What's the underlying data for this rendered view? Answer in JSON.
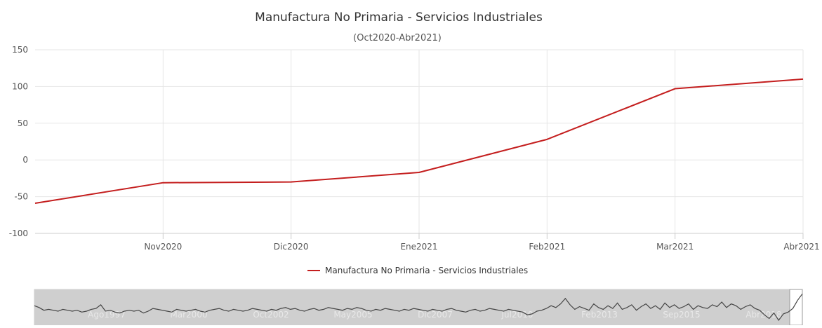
{
  "chart_data": {
    "type": "line",
    "title": "Manufactura No Primaria - Servicios Industriales",
    "subtitle": "(Oct2020-Abr2021)",
    "categories": [
      "Oct2020",
      "Nov2020",
      "Dic2020",
      "Ene2021",
      "Feb2021",
      "Mar2021",
      "Abr2021"
    ],
    "x_tick_labels": [
      "Nov2020",
      "Dic2020",
      "Ene2021",
      "Feb2021",
      "Mar2021",
      "Abr2021"
    ],
    "series": [
      {
        "name": "Manufactura No Primaria - Servicios Industriales",
        "color": "#c41e1e",
        "values": [
          -59,
          -31,
          -30,
          -17,
          28,
          97,
          110
        ]
      }
    ],
    "ylim": [
      -100,
      150
    ],
    "y_ticks": [
      -100,
      -50,
      0,
      50,
      100,
      150
    ],
    "xlabel": "",
    "ylabel": "",
    "grid": true,
    "legend": "bottom-center",
    "navigator": {
      "labels": [
        "Ago1997",
        "Mar2000",
        "Oct2002",
        "May2005",
        "Dic2007",
        "Jul2010",
        "Feb2013",
        "Sep2015",
        "Abr2018"
      ],
      "series_values": [
        6,
        4,
        1,
        2,
        1,
        0,
        2,
        1,
        0,
        1,
        -1,
        0,
        2,
        3,
        7,
        0,
        1,
        -1,
        -2,
        0,
        1,
        0,
        1,
        -2,
        0,
        3,
        2,
        1,
        0,
        -1,
        2,
        1,
        0,
        1,
        2,
        0,
        -1,
        1,
        2,
        3,
        1,
        0,
        2,
        1,
        0,
        1,
        3,
        2,
        1,
        0,
        2,
        1,
        3,
        4,
        2,
        3,
        1,
        0,
        2,
        3,
        1,
        2,
        4,
        3,
        2,
        1,
        3,
        2,
        4,
        3,
        1,
        0,
        2,
        1,
        3,
        2,
        1,
        0,
        2,
        1,
        3,
        2,
        1,
        0,
        2,
        1,
        0,
        2,
        3,
        1,
        0,
        -1,
        1,
        2,
        0,
        1,
        3,
        2,
        1,
        0,
        2,
        1,
        0,
        -1,
        -4,
        -3,
        0,
        1,
        3,
        6,
        4,
        8,
        14,
        7,
        2,
        5,
        3,
        1,
        8,
        4,
        2,
        6,
        3,
        9,
        2,
        4,
        7,
        1,
        5,
        8,
        3,
        6,
        2,
        9,
        4,
        7,
        3,
        5,
        8,
        2,
        6,
        4,
        3,
        7,
        5,
        10,
        4,
        8,
        6,
        2,
        5,
        7,
        3,
        1,
        -4,
        -8,
        -2,
        -10,
        -3,
        -1,
        3,
        12,
        19
      ],
      "selected_range": [
        "Oct2020",
        "Abr2021"
      ]
    }
  }
}
